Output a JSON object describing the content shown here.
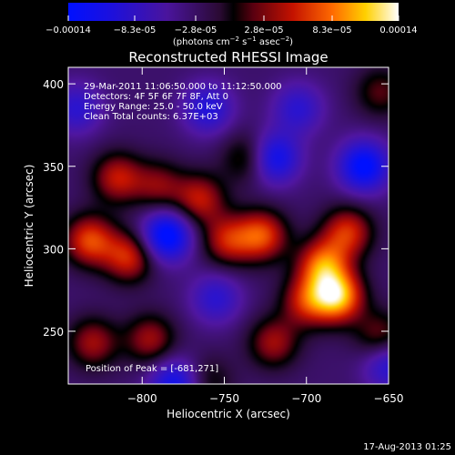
{
  "chart_data": {
    "type": "heatmap",
    "title": "Reconstructed RHESSI Image",
    "xlabel": "Heliocentric X (arcsec)",
    "ylabel": "Heliocentric Y (arcsec)",
    "xlim": [
      -845,
      -650
    ],
    "ylim": [
      218,
      410
    ],
    "xticks": [
      -800,
      -750,
      -700,
      -650
    ],
    "yticks": [
      250,
      300,
      350,
      400
    ],
    "annotations": [
      "29-Mar-2011 11:06:50.000 to 11:12:50.000",
      "Detectors: 4F 5F 6F 7F 8F, Att 0",
      "Energy Range: 25.0 - 50.0 keV",
      "Clean    Total counts: 6.37E+03"
    ],
    "peak_label": "Position of Peak = [-681,271]",
    "peak": {
      "x": -681,
      "y": 271
    },
    "colorbar": {
      "range": [
        -0.00014,
        0.00014
      ],
      "tick_labels": [
        "-0.00014",
        "-8.3e-05",
        "-2.8e-05",
        "2.8e-05",
        "8.3e-05",
        "0.00014"
      ],
      "unit_label": "(photons cm",
      "unit_exp1": "-2",
      "unit_mid": " s",
      "unit_exp2": "-1",
      "unit_end": " asec",
      "unit_exp3": "-2",
      "unit_close": ")"
    },
    "sources": [
      {
        "x": -681,
        "y": 271,
        "v": 0.00014
      },
      {
        "x": -690,
        "y": 290,
        "v": 0.00011
      },
      {
        "x": -675,
        "y": 310,
        "v": 9e-05
      },
      {
        "x": -700,
        "y": 268,
        "v": 8e-05
      },
      {
        "x": -727,
        "y": 308,
        "v": 0.0001
      },
      {
        "x": -748,
        "y": 305,
        "v": 8e-05
      },
      {
        "x": -765,
        "y": 330,
        "v": 8e-05
      },
      {
        "x": -735,
        "y": 355,
        "v": 6e-05
      },
      {
        "x": -832,
        "y": 305,
        "v": 0.0001
      },
      {
        "x": -808,
        "y": 295,
        "v": 9e-05
      },
      {
        "x": -815,
        "y": 343,
        "v": 8e-05
      },
      {
        "x": -790,
        "y": 338,
        "v": 6e-05
      },
      {
        "x": -830,
        "y": 243,
        "v": 7e-05
      },
      {
        "x": -795,
        "y": 245,
        "v": 7e-05
      },
      {
        "x": -720,
        "y": 243,
        "v": 7e-05
      },
      {
        "x": -655,
        "y": 395,
        "v": 5e-05
      },
      {
        "x": -760,
        "y": 220,
        "v": 4e-05
      },
      {
        "x": -655,
        "y": 247,
        "v": 6e-05
      },
      {
        "x": -785,
        "y": 308,
        "v": -0.00012
      },
      {
        "x": -720,
        "y": 355,
        "v": -0.0001
      },
      {
        "x": -665,
        "y": 350,
        "v": -0.00011
      },
      {
        "x": -780,
        "y": 218,
        "v": -9e-05
      },
      {
        "x": -760,
        "y": 385,
        "v": -7e-05
      },
      {
        "x": -705,
        "y": 385,
        "v": -6e-05
      },
      {
        "x": -840,
        "y": 385,
        "v": -6e-05
      },
      {
        "x": -755,
        "y": 270,
        "v": -6e-05
      },
      {
        "x": -650,
        "y": 230,
        "v": -7e-05
      }
    ]
  },
  "footer": {
    "date": "17-Aug-2013 01:25"
  }
}
